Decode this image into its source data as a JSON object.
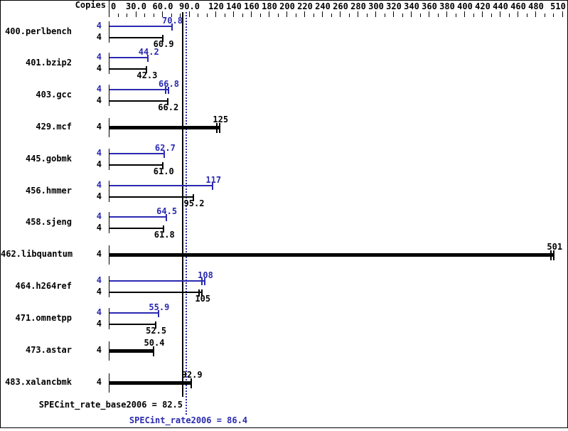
{
  "header": {
    "copies_label": "Copies"
  },
  "axis": {
    "minor_tick_step": 10,
    "max_value": 510,
    "labels": [
      {
        "v": 0,
        "t": "0"
      },
      {
        "v": 30,
        "t": "30.0"
      },
      {
        "v": 60,
        "t": "60.0"
      },
      {
        "v": 90,
        "t": "90.0"
      },
      {
        "v": 120,
        "t": "120"
      },
      {
        "v": 140,
        "t": "140"
      },
      {
        "v": 160,
        "t": "160"
      },
      {
        "v": 180,
        "t": "180"
      },
      {
        "v": 200,
        "t": "200"
      },
      {
        "v": 220,
        "t": "220"
      },
      {
        "v": 240,
        "t": "240"
      },
      {
        "v": 260,
        "t": "260"
      },
      {
        "v": 280,
        "t": "280"
      },
      {
        "v": 300,
        "t": "300"
      },
      {
        "v": 320,
        "t": "320"
      },
      {
        "v": 340,
        "t": "340"
      },
      {
        "v": 360,
        "t": "360"
      },
      {
        "v": 380,
        "t": "380"
      },
      {
        "v": 400,
        "t": "400"
      },
      {
        "v": 420,
        "t": "420"
      },
      {
        "v": 440,
        "t": "440"
      },
      {
        "v": 460,
        "t": "460"
      },
      {
        "v": 480,
        "t": "480"
      },
      {
        "v": 510,
        "t": "510"
      }
    ]
  },
  "chart_data": {
    "type": "bar",
    "orientation": "horizontal",
    "title": "",
    "xlabel": "",
    "ylabel": "Copies",
    "xlim": [
      0,
      515
    ],
    "legend": [
      "peak (blue)",
      "base (black)"
    ],
    "benchmarks": [
      {
        "name": "400.perlbench",
        "copies": "4",
        "single": false,
        "peak": 70.8,
        "peak_label": "70.8",
        "base": 60.9,
        "base_label": "60.9",
        "peak_marks": false,
        "base_marks": false
      },
      {
        "name": "401.bzip2",
        "copies": "4",
        "single": false,
        "peak": 44.2,
        "peak_label": "44.2",
        "base": 42.3,
        "base_label": "42.3",
        "peak_marks": false,
        "base_marks": false
      },
      {
        "name": "403.gcc",
        "copies": "4",
        "single": false,
        "peak": 66.8,
        "peak_label": "66.8",
        "base": 66.2,
        "base_label": "66.2",
        "peak_marks": true,
        "base_marks": false
      },
      {
        "name": "429.mcf",
        "copies": "4",
        "single": true,
        "peak": null,
        "peak_label": null,
        "base": 125,
        "base_label": "125",
        "peak_marks": false,
        "base_marks": true
      },
      {
        "name": "445.gobmk",
        "copies": "4",
        "single": false,
        "peak": 62.7,
        "peak_label": "62.7",
        "base": 61.0,
        "base_label": "61.0",
        "peak_marks": false,
        "base_marks": false
      },
      {
        "name": "456.hmmer",
        "copies": "4",
        "single": false,
        "peak": 117,
        "peak_label": "117",
        "base": 95.2,
        "base_label": "95.2",
        "peak_marks": false,
        "base_marks": false
      },
      {
        "name": "458.sjeng",
        "copies": "4",
        "single": false,
        "peak": 64.5,
        "peak_label": "64.5",
        "base": 61.8,
        "base_label": "61.8",
        "peak_marks": false,
        "base_marks": false
      },
      {
        "name": "462.libquantum",
        "copies": "4",
        "single": true,
        "peak": null,
        "peak_label": null,
        "base": 501,
        "base_label": "501",
        "peak_marks": false,
        "base_marks": true
      },
      {
        "name": "464.h264ref",
        "copies": "4",
        "single": false,
        "peak": 108,
        "peak_label": "108",
        "base": 105,
        "base_label": "105",
        "peak_marks": true,
        "base_marks": true
      },
      {
        "name": "471.omnetpp",
        "copies": "4",
        "single": false,
        "peak": 55.9,
        "peak_label": "55.9",
        "base": 52.5,
        "base_label": "52.5",
        "peak_marks": false,
        "base_marks": false
      },
      {
        "name": "473.astar",
        "copies": "4",
        "single": true,
        "peak": null,
        "peak_label": null,
        "base": 50.4,
        "base_label": "50.4",
        "peak_marks": false,
        "base_marks": false
      },
      {
        "name": "483.xalancbmk",
        "copies": "4",
        "single": true,
        "peak": null,
        "peak_label": null,
        "base": 92.9,
        "base_label": "92.9",
        "peak_marks": false,
        "base_marks": false
      }
    ],
    "summary": {
      "base_text": "SPECint_rate_base2006 = 82.5",
      "base_value": 82.5,
      "peak_text": "SPECint_rate2006 = 86.4",
      "peak_value": 86.4
    }
  },
  "colors": {
    "peak_blue": "#2a2ab0",
    "base_black": "#000000",
    "background": "#ffffff"
  }
}
